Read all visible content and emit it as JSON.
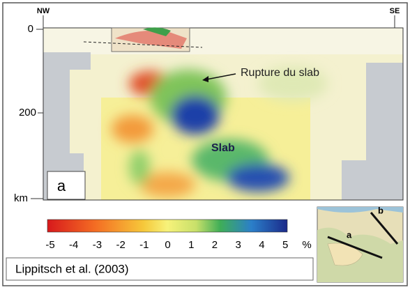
{
  "figure": {
    "orientation": {
      "left": "NW",
      "right": "SE"
    },
    "depth_axis": {
      "ticks": [
        "0",
        "200"
      ],
      "unit": "km"
    },
    "annotations": {
      "rupture": "Rupture du slab",
      "slab": "Slab",
      "panel": "a"
    },
    "colorbar": {
      "ticks": [
        -5,
        -4,
        -3,
        -2,
        -1,
        0,
        1,
        2,
        3,
        4,
        5
      ],
      "unit": "%"
    },
    "citation": "Lippitsch et al. (2003)",
    "inset": {
      "labels": [
        "a",
        "b"
      ]
    }
  }
}
